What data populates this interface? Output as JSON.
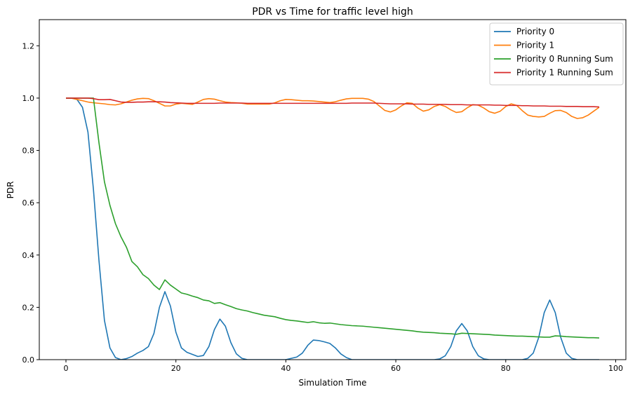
{
  "chart_data": {
    "type": "line",
    "title": "PDR vs Time for traffic level high",
    "xlabel": "Simulation Time",
    "ylabel": "PDR",
    "xlim": [
      -4.85,
      101.85
    ],
    "ylim": [
      0,
      1.3
    ],
    "xticks": [
      0,
      20,
      40,
      60,
      80,
      100
    ],
    "yticks": [
      0.0,
      0.2,
      0.4,
      0.6,
      0.8,
      1.0,
      1.2
    ],
    "grid": false,
    "legend_position": "top-right",
    "series": [
      {
        "name": "Priority 0",
        "color": "#1f77b4",
        "x": [
          0,
          1,
          2,
          3,
          4,
          5,
          6,
          7,
          8,
          9,
          10,
          11,
          12,
          13,
          14,
          15,
          16,
          17,
          18,
          19,
          20,
          21,
          22,
          23,
          24,
          25,
          26,
          27,
          28,
          29,
          30,
          31,
          32,
          33,
          34,
          35,
          36,
          37,
          38,
          39,
          40,
          41,
          42,
          43,
          44,
          45,
          46,
          47,
          48,
          49,
          50,
          51,
          52,
          53,
          54,
          55,
          56,
          57,
          58,
          59,
          60,
          61,
          62,
          63,
          64,
          65,
          66,
          67,
          68,
          69,
          70,
          71,
          72,
          73,
          74,
          75,
          76,
          77,
          78,
          79,
          80,
          81,
          82,
          83,
          84,
          85,
          86,
          87,
          88,
          89,
          90,
          91,
          92,
          93,
          94,
          95,
          96,
          97
        ],
        "y": [
          1.0,
          1.0,
          0.995,
          0.965,
          0.87,
          0.65,
          0.38,
          0.15,
          0.045,
          0.008,
          0.0,
          0.004,
          0.012,
          0.025,
          0.035,
          0.05,
          0.1,
          0.2,
          0.26,
          0.205,
          0.105,
          0.045,
          0.028,
          0.02,
          0.012,
          0.016,
          0.05,
          0.115,
          0.155,
          0.128,
          0.065,
          0.022,
          0.005,
          0.0,
          0.0,
          0.0,
          0.0,
          0.0,
          0.0,
          0.0,
          0.0,
          0.005,
          0.01,
          0.025,
          0.055,
          0.075,
          0.073,
          0.068,
          0.062,
          0.045,
          0.022,
          0.008,
          0.0,
          0.0,
          0.0,
          0.0,
          0.0,
          0.0,
          0.0,
          0.0,
          0.0,
          0.0,
          0.0,
          0.0,
          0.0,
          0.0,
          0.0,
          0.0,
          0.003,
          0.015,
          0.05,
          0.11,
          0.138,
          0.11,
          0.05,
          0.015,
          0.003,
          0.0,
          0.0,
          0.0,
          0.0,
          0.0,
          0.0,
          0.0,
          0.005,
          0.025,
          0.085,
          0.18,
          0.228,
          0.18,
          0.085,
          0.025,
          0.005,
          0.0,
          0.0,
          0.0,
          0.0,
          0.0
        ]
      },
      {
        "name": "Priority 1",
        "color": "#ff7f0e",
        "x": [
          0,
          1,
          2,
          3,
          4,
          5,
          6,
          7,
          8,
          9,
          10,
          11,
          12,
          13,
          14,
          15,
          16,
          17,
          18,
          19,
          20,
          21,
          22,
          23,
          24,
          25,
          26,
          27,
          28,
          29,
          30,
          31,
          32,
          33,
          34,
          35,
          36,
          37,
          38,
          39,
          40,
          41,
          42,
          43,
          44,
          45,
          46,
          47,
          48,
          49,
          50,
          51,
          52,
          53,
          54,
          55,
          56,
          57,
          58,
          59,
          60,
          61,
          62,
          63,
          64,
          65,
          66,
          67,
          68,
          69,
          70,
          71,
          72,
          73,
          74,
          75,
          76,
          77,
          78,
          79,
          80,
          81,
          82,
          83,
          84,
          85,
          86,
          87,
          88,
          89,
          90,
          91,
          92,
          93,
          94,
          95,
          96,
          97
        ],
        "y": [
          1.0,
          1.0,
          0.995,
          0.99,
          0.985,
          0.982,
          0.98,
          0.978,
          0.975,
          0.974,
          0.978,
          0.985,
          0.992,
          0.997,
          0.999,
          0.998,
          0.99,
          0.98,
          0.97,
          0.97,
          0.977,
          0.98,
          0.978,
          0.976,
          0.985,
          0.995,
          0.998,
          0.996,
          0.99,
          0.985,
          0.983,
          0.982,
          0.98,
          0.977,
          0.977,
          0.977,
          0.977,
          0.977,
          0.982,
          0.99,
          0.995,
          0.994,
          0.992,
          0.99,
          0.99,
          0.989,
          0.987,
          0.985,
          0.983,
          0.986,
          0.992,
          0.997,
          0.999,
          0.999,
          0.999,
          0.996,
          0.987,
          0.97,
          0.953,
          0.947,
          0.955,
          0.97,
          0.982,
          0.98,
          0.962,
          0.95,
          0.955,
          0.968,
          0.975,
          0.968,
          0.955,
          0.945,
          0.948,
          0.963,
          0.975,
          0.973,
          0.962,
          0.948,
          0.942,
          0.95,
          0.968,
          0.978,
          0.972,
          0.952,
          0.935,
          0.93,
          0.928,
          0.93,
          0.942,
          0.952,
          0.953,
          0.945,
          0.93,
          0.922,
          0.925,
          0.935,
          0.95,
          0.965
        ]
      },
      {
        "name": "Priority 0 Running Sum",
        "color": "#2ca02c",
        "x": [
          0,
          1,
          2,
          3,
          4,
          5,
          6,
          7,
          8,
          9,
          10,
          11,
          12,
          13,
          14,
          15,
          16,
          17,
          18,
          19,
          20,
          21,
          22,
          23,
          24,
          25,
          26,
          27,
          28,
          29,
          30,
          31,
          32,
          33,
          34,
          35,
          36,
          37,
          38,
          39,
          40,
          41,
          42,
          43,
          44,
          45,
          46,
          47,
          48,
          49,
          50,
          51,
          52,
          53,
          54,
          55,
          56,
          57,
          58,
          59,
          60,
          61,
          62,
          63,
          64,
          65,
          66,
          67,
          68,
          69,
          70,
          71,
          72,
          73,
          74,
          75,
          76,
          77,
          78,
          79,
          80,
          81,
          82,
          83,
          84,
          85,
          86,
          87,
          88,
          89,
          90,
          91,
          92,
          93,
          94,
          95,
          96,
          97
        ],
        "y": [
          1.0,
          1.0,
          1.0,
          1.0,
          1.0,
          1.0,
          0.83,
          0.68,
          0.59,
          0.52,
          0.47,
          0.43,
          0.375,
          0.355,
          0.325,
          0.31,
          0.285,
          0.268,
          0.305,
          0.285,
          0.27,
          0.255,
          0.25,
          0.243,
          0.237,
          0.228,
          0.225,
          0.215,
          0.218,
          0.21,
          0.203,
          0.195,
          0.19,
          0.186,
          0.18,
          0.175,
          0.17,
          0.167,
          0.164,
          0.158,
          0.153,
          0.15,
          0.148,
          0.145,
          0.142,
          0.145,
          0.141,
          0.139,
          0.14,
          0.137,
          0.134,
          0.132,
          0.13,
          0.129,
          0.128,
          0.126,
          0.124,
          0.122,
          0.12,
          0.118,
          0.116,
          0.114,
          0.112,
          0.11,
          0.107,
          0.105,
          0.104,
          0.103,
          0.101,
          0.1,
          0.099,
          0.097,
          0.101,
          0.1,
          0.099,
          0.098,
          0.097,
          0.096,
          0.094,
          0.093,
          0.092,
          0.091,
          0.09,
          0.09,
          0.089,
          0.088,
          0.087,
          0.086,
          0.086,
          0.091,
          0.09,
          0.088,
          0.087,
          0.086,
          0.085,
          0.084,
          0.084,
          0.083
        ]
      },
      {
        "name": "Priority 1 Running Sum",
        "color": "#d62728",
        "x": [
          0,
          1,
          2,
          3,
          4,
          5,
          6,
          7,
          8,
          9,
          10,
          11,
          12,
          13,
          14,
          15,
          16,
          17,
          18,
          19,
          20,
          21,
          22,
          23,
          24,
          25,
          26,
          27,
          28,
          29,
          30,
          31,
          32,
          33,
          34,
          35,
          36,
          37,
          38,
          39,
          40,
          41,
          42,
          43,
          44,
          45,
          46,
          47,
          48,
          49,
          50,
          51,
          52,
          53,
          54,
          55,
          56,
          57,
          58,
          59,
          60,
          61,
          62,
          63,
          64,
          65,
          66,
          67,
          68,
          69,
          70,
          71,
          72,
          73,
          74,
          75,
          76,
          77,
          78,
          79,
          80,
          81,
          82,
          83,
          84,
          85,
          86,
          87,
          88,
          89,
          90,
          91,
          92,
          93,
          94,
          95,
          96,
          97
        ],
        "y": [
          1.0,
          1.0,
          1.0,
          1.0,
          1.0,
          0.998,
          0.994,
          0.994,
          0.995,
          0.99,
          0.985,
          0.984,
          0.984,
          0.985,
          0.985,
          0.986,
          0.986,
          0.986,
          0.985,
          0.983,
          0.982,
          0.981,
          0.98,
          0.98,
          0.98,
          0.98,
          0.98,
          0.98,
          0.981,
          0.981,
          0.981,
          0.981,
          0.981,
          0.98,
          0.98,
          0.98,
          0.98,
          0.98,
          0.98,
          0.98,
          0.98,
          0.98,
          0.98,
          0.98,
          0.98,
          0.98,
          0.98,
          0.98,
          0.98,
          0.98,
          0.98,
          0.98,
          0.981,
          0.981,
          0.981,
          0.981,
          0.981,
          0.98,
          0.979,
          0.978,
          0.978,
          0.978,
          0.978,
          0.977,
          0.977,
          0.977,
          0.976,
          0.976,
          0.976,
          0.976,
          0.975,
          0.975,
          0.975,
          0.974,
          0.974,
          0.974,
          0.974,
          0.974,
          0.973,
          0.973,
          0.972,
          0.972,
          0.972,
          0.971,
          0.971,
          0.97,
          0.97,
          0.97,
          0.969,
          0.969,
          0.969,
          0.968,
          0.968,
          0.968,
          0.967,
          0.967,
          0.967,
          0.966
        ]
      }
    ]
  }
}
